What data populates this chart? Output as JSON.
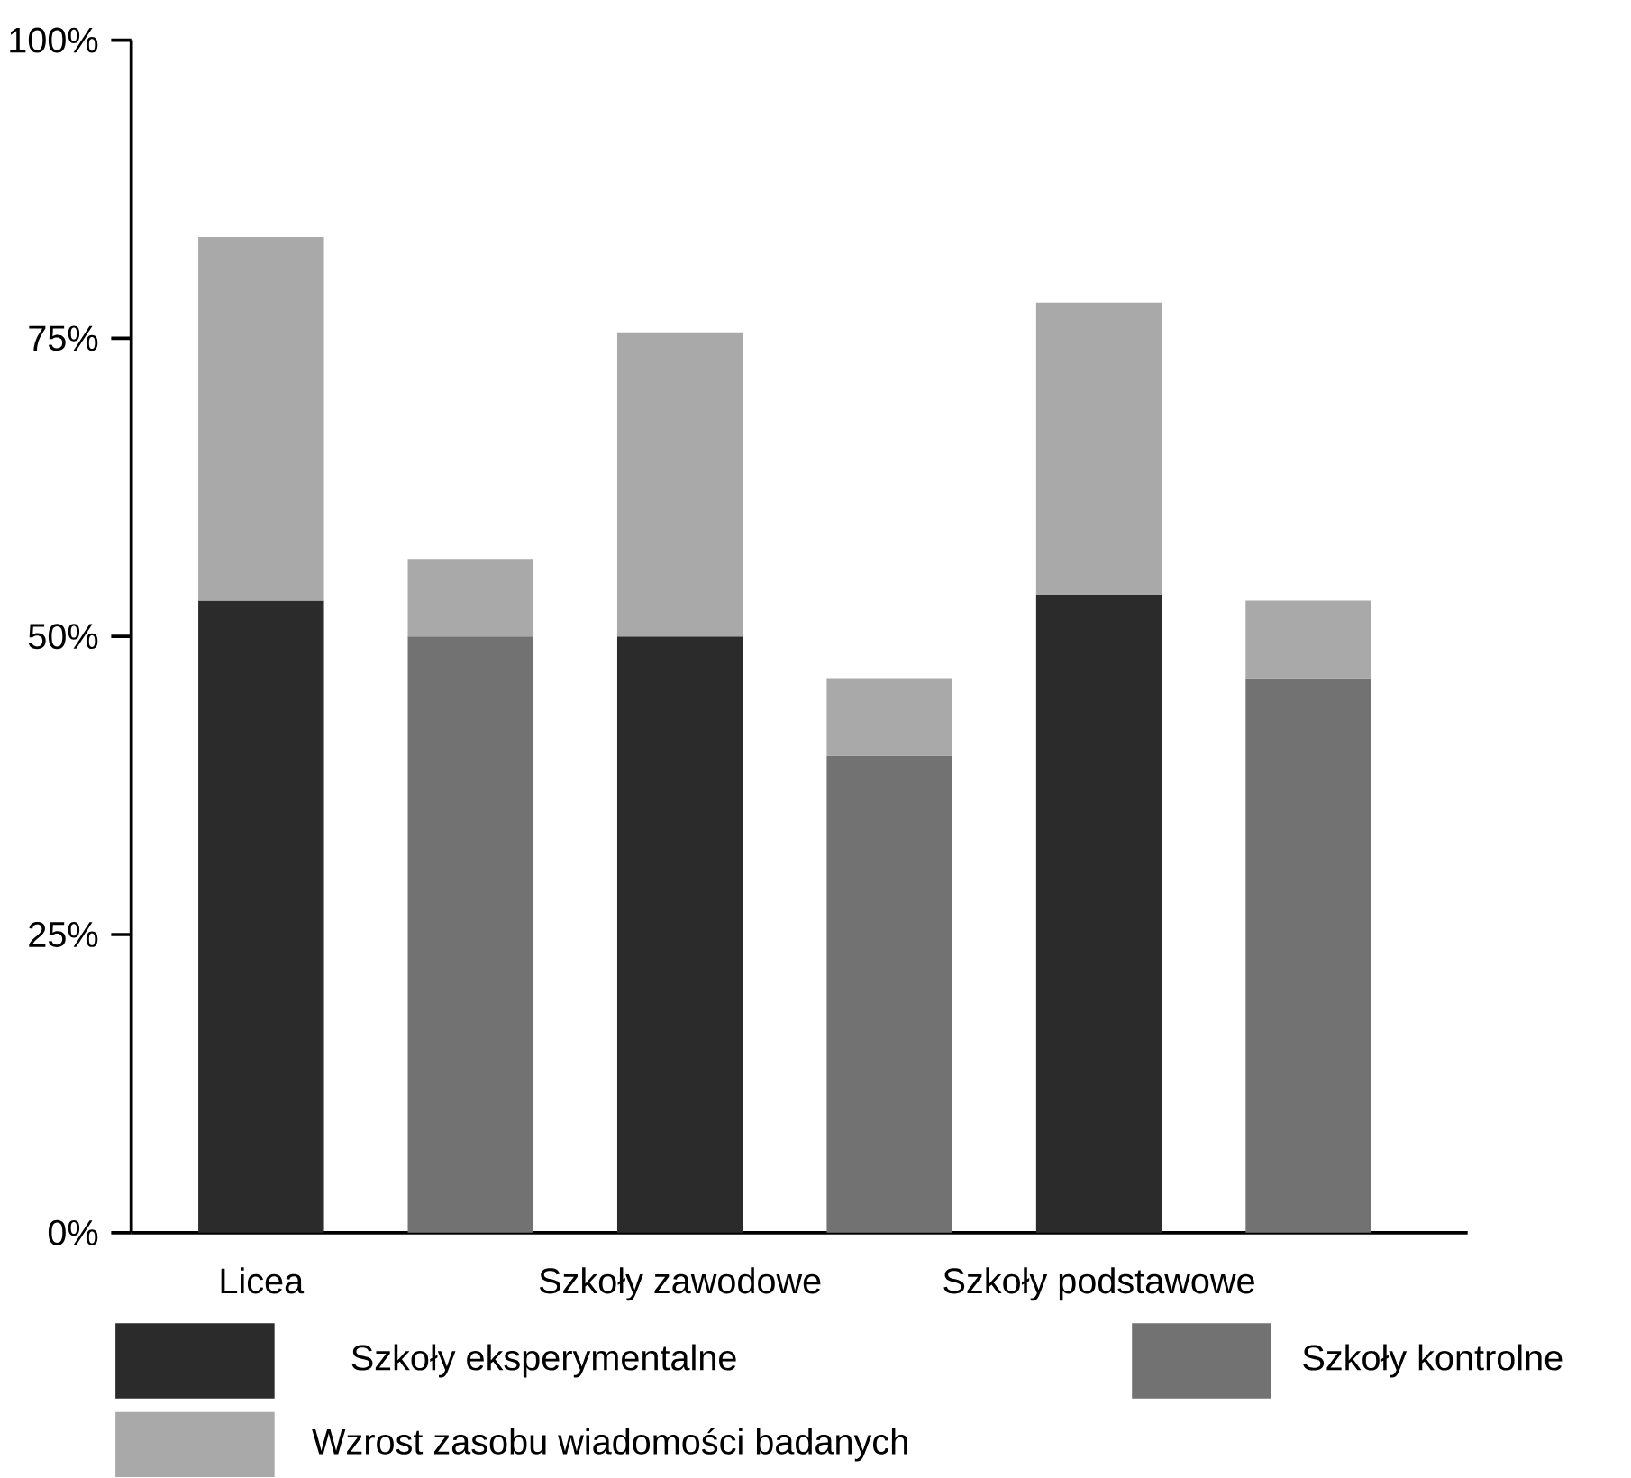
{
  "chart_data": {
    "type": "bar",
    "stacked": true,
    "categories": [
      "Licea",
      null,
      "Szkoły zawodowe",
      null,
      "Szkoły podstawowe",
      null
    ],
    "series": [
      {
        "name": "Szkoły eksperymentalne",
        "color": "#2b2b2b",
        "values": [
          53,
          null,
          50,
          null,
          53.5,
          null
        ]
      },
      {
        "name": "Szkoły kontrolne",
        "color": "#727272",
        "values": [
          null,
          50,
          null,
          40,
          null,
          46.5
        ]
      },
      {
        "name": "Wzrost zasobu wiadomości badanych",
        "color": "#a9a9a9",
        "values": [
          30.5,
          6.5,
          25.5,
          6.5,
          24.5,
          6.5
        ]
      }
    ],
    "ylim": [
      0,
      100
    ],
    "yticks": [
      {
        "value": 0,
        "label": "0%"
      },
      {
        "value": 25,
        "label": "25%"
      },
      {
        "value": 50,
        "label": "50%"
      },
      {
        "value": 75,
        "label": "75%"
      },
      {
        "value": 100,
        "label": "100%"
      }
    ],
    "legend": "bottom"
  }
}
